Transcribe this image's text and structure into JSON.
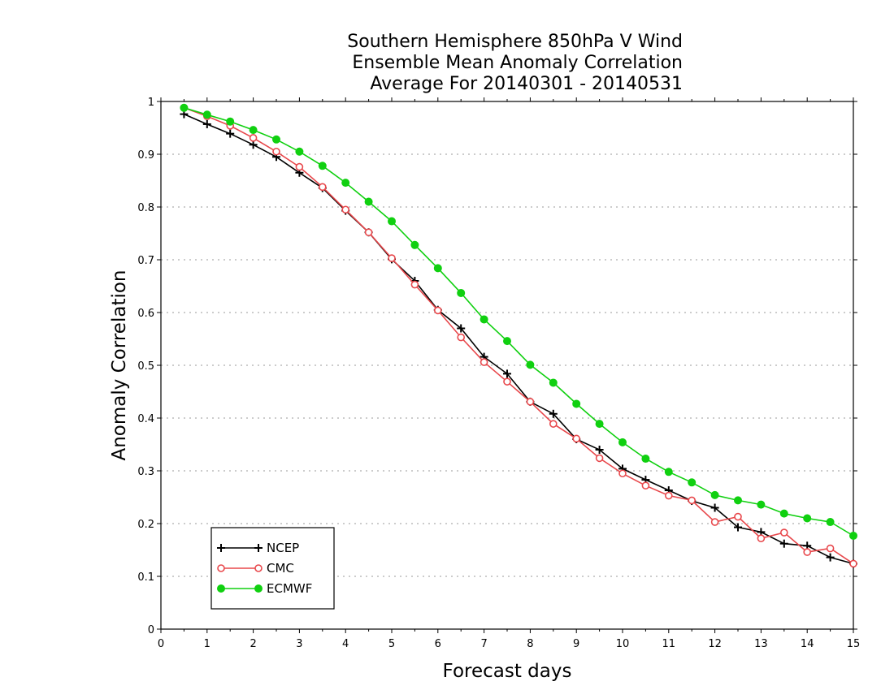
{
  "chart_data": {
    "type": "line",
    "title_lines": [
      "Southern Hemisphere 850hPa V Wind",
      "Ensemble Mean Anomaly Correlation",
      "Average For 20140301 - 20140531"
    ],
    "xlabel": "Forecast days",
    "ylabel": "Anomaly Correlation",
    "xlim": [
      0,
      15
    ],
    "ylim": [
      0,
      1
    ],
    "xticks": [
      0,
      1,
      2,
      3,
      4,
      5,
      6,
      7,
      8,
      9,
      10,
      11,
      12,
      13,
      14,
      15
    ],
    "yticks": [
      0,
      0.1,
      0.2,
      0.3,
      0.4,
      0.5,
      0.6,
      0.7,
      0.8,
      0.9,
      1
    ],
    "ytick_labels": [
      "0",
      "0.1",
      "0.2",
      "0.3",
      "0.4",
      "0.5",
      "0.6",
      "0.7",
      "0.8",
      "0.9",
      "1"
    ],
    "grid": "horizontal-dotted",
    "legend_position": "bottom-left",
    "x": [
      0.5,
      1,
      1.5,
      2,
      2.5,
      3,
      3.5,
      4,
      4.5,
      5,
      5.5,
      6,
      6.5,
      7,
      7.5,
      8,
      8.5,
      9,
      9.5,
      10,
      10.5,
      11,
      11.5,
      12,
      12.5,
      13,
      13.5,
      14,
      14.5,
      15
    ],
    "series": [
      {
        "name": "NCEP",
        "color": "#000000",
        "marker": "plus",
        "values": [
          0.976,
          0.957,
          0.939,
          0.918,
          0.895,
          0.865,
          0.836,
          0.793,
          0.752,
          0.701,
          0.66,
          0.605,
          0.57,
          0.516,
          0.484,
          0.431,
          0.408,
          0.36,
          0.34,
          0.304,
          0.283,
          0.263,
          0.243,
          0.23,
          0.193,
          0.184,
          0.162,
          0.158,
          0.136,
          0.124
        ]
      },
      {
        "name": "CMC",
        "color": "#e8484c",
        "marker": "open-circle",
        "values": [
          0.988,
          0.972,
          0.954,
          0.931,
          0.905,
          0.876,
          0.838,
          0.795,
          0.752,
          0.703,
          0.653,
          0.604,
          0.553,
          0.506,
          0.469,
          0.431,
          0.389,
          0.361,
          0.324,
          0.295,
          0.272,
          0.253,
          0.244,
          0.203,
          0.213,
          0.172,
          0.183,
          0.146,
          0.153,
          0.124
        ]
      },
      {
        "name": "ECMWF",
        "color": "#10d010",
        "marker": "filled-circle",
        "values": [
          0.988,
          0.975,
          0.962,
          0.946,
          0.928,
          0.905,
          0.878,
          0.846,
          0.81,
          0.773,
          0.728,
          0.684,
          0.637,
          0.587,
          0.546,
          0.501,
          0.467,
          0.427,
          0.389,
          0.354,
          0.323,
          0.298,
          0.278,
          0.254,
          0.244,
          0.236,
          0.219,
          0.21,
          0.203,
          0.177
        ]
      }
    ]
  }
}
